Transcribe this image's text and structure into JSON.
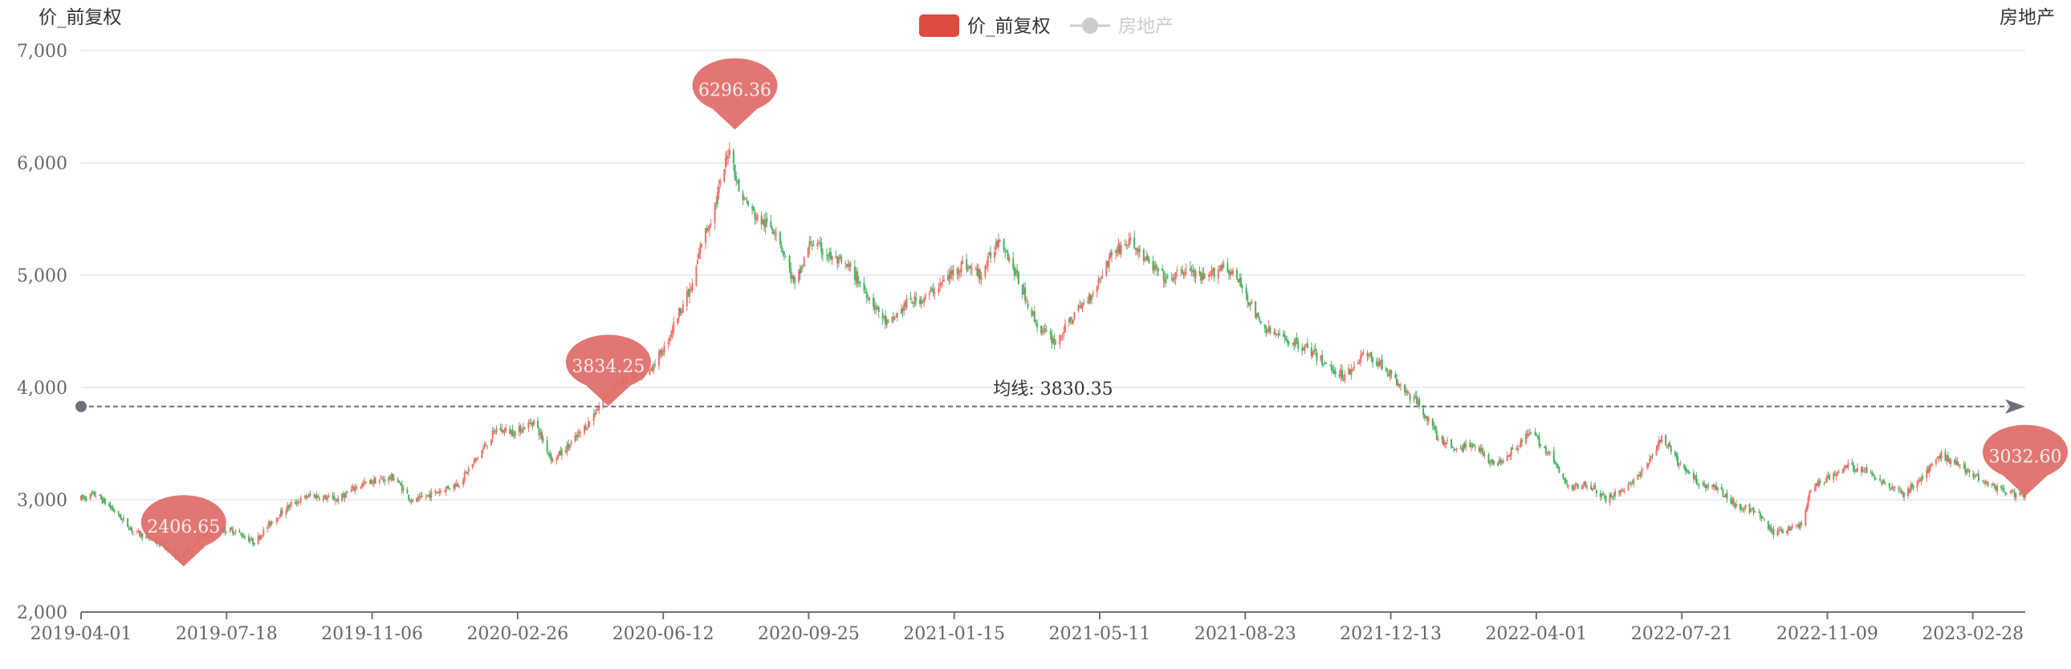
{
  "chart_data": {
    "type": "candlestick",
    "y_axis_name_left": "价_前复权",
    "y_axis_name_right": "房地产",
    "legend": [
      {
        "name": "价_前复权",
        "color": "#dd4b41",
        "active": true
      },
      {
        "name": "房地产",
        "color": "#cccccc",
        "active": false
      }
    ],
    "ylim": [
      2000,
      7000
    ],
    "y_ticks": [
      2000,
      3000,
      4000,
      5000,
      6000,
      7000
    ],
    "y_tick_labels": [
      "2,000",
      "3,000",
      "4,000",
      "5,000",
      "6,000",
      "7,000"
    ],
    "x_start": "2019-04-01",
    "x_end": "2023-03-31",
    "x_tick_labels": [
      "2019-04-01",
      "2019-07-18",
      "2019-11-06",
      "2020-02-26",
      "2020-06-12",
      "2020-09-25",
      "2021-01-15",
      "2021-05-11",
      "2021-08-23",
      "2021-12-13",
      "2022-04-01",
      "2022-07-21",
      "2022-11-09",
      "2023-02-28"
    ],
    "up_color": "#ec7167",
    "down_color": "#47b262",
    "close_series": [
      [
        "2019-04-01",
        3010
      ],
      [
        "2019-04-12",
        3050
      ],
      [
        "2019-04-26",
        2900
      ],
      [
        "2019-05-10",
        2720
      ],
      [
        "2019-05-24",
        2650
      ],
      [
        "2019-06-06",
        2560
      ],
      [
        "2019-06-14",
        2470
      ],
      [
        "2019-06-28",
        2650
      ],
      [
        "2019-07-12",
        2740
      ],
      [
        "2019-07-26",
        2720
      ],
      [
        "2019-08-09",
        2620
      ],
      [
        "2019-08-23",
        2820
      ],
      [
        "2019-09-06",
        2960
      ],
      [
        "2019-09-20",
        3040
      ],
      [
        "2019-10-11",
        3000
      ],
      [
        "2019-10-25",
        3120
      ],
      [
        "2019-11-08",
        3170
      ],
      [
        "2019-11-22",
        3200
      ],
      [
        "2019-12-06",
        2980
      ],
      [
        "2019-12-20",
        3050
      ],
      [
        "2020-01-10",
        3150
      ],
      [
        "2020-01-22",
        3350
      ],
      [
        "2020-02-07",
        3630
      ],
      [
        "2020-02-21",
        3600
      ],
      [
        "2020-03-06",
        3700
      ],
      [
        "2020-03-20",
        3350
      ],
      [
        "2020-04-03",
        3500
      ],
      [
        "2020-04-17",
        3700
      ],
      [
        "2020-04-30",
        3950
      ],
      [
        "2020-05-15",
        4100
      ],
      [
        "2020-05-29",
        4100
      ],
      [
        "2020-06-12",
        4350
      ],
      [
        "2020-06-24",
        4700
      ],
      [
        "2020-07-03",
        4900
      ],
      [
        "2020-07-10",
        5300
      ],
      [
        "2020-07-17",
        5500
      ],
      [
        "2020-07-24",
        5800
      ],
      [
        "2020-07-31",
        6150
      ],
      [
        "2020-08-07",
        5750
      ],
      [
        "2020-08-21",
        5500
      ],
      [
        "2020-09-04",
        5400
      ],
      [
        "2020-09-18",
        4900
      ],
      [
        "2020-09-30",
        5300
      ],
      [
        "2020-10-16",
        5150
      ],
      [
        "2020-10-30",
        5050
      ],
      [
        "2020-11-13",
        4800
      ],
      [
        "2020-11-27",
        4550
      ],
      [
        "2020-12-11",
        4750
      ],
      [
        "2020-12-25",
        4800
      ],
      [
        "2021-01-08",
        4950
      ],
      [
        "2021-01-22",
        5100
      ],
      [
        "2021-02-05",
        5000
      ],
      [
        "2021-02-19",
        5350
      ],
      [
        "2021-03-05",
        4950
      ],
      [
        "2021-03-19",
        4550
      ],
      [
        "2021-04-02",
        4400
      ],
      [
        "2021-04-16",
        4650
      ],
      [
        "2021-04-30",
        4850
      ],
      [
        "2021-05-14",
        5200
      ],
      [
        "2021-05-28",
        5300
      ],
      [
        "2021-06-11",
        5100
      ],
      [
        "2021-06-25",
        4950
      ],
      [
        "2021-07-09",
        5050
      ],
      [
        "2021-07-23",
        4950
      ],
      [
        "2021-08-06",
        5100
      ],
      [
        "2021-08-20",
        4900
      ],
      [
        "2021-09-03",
        4550
      ],
      [
        "2021-09-17",
        4450
      ],
      [
        "2021-10-08",
        4350
      ],
      [
        "2021-10-22",
        4200
      ],
      [
        "2021-11-05",
        4100
      ],
      [
        "2021-11-19",
        4300
      ],
      [
        "2021-12-03",
        4200
      ],
      [
        "2021-12-17",
        4000
      ],
      [
        "2021-12-31",
        3850
      ],
      [
        "2022-01-14",
        3550
      ],
      [
        "2022-01-28",
        3450
      ],
      [
        "2022-02-11",
        3500
      ],
      [
        "2022-02-25",
        3300
      ],
      [
        "2022-03-11",
        3450
      ],
      [
        "2022-03-25",
        3600
      ],
      [
        "2022-04-08",
        3400
      ],
      [
        "2022-04-22",
        3100
      ],
      [
        "2022-05-06",
        3150
      ],
      [
        "2022-05-20",
        3000
      ],
      [
        "2022-06-03",
        3100
      ],
      [
        "2022-06-17",
        3250
      ],
      [
        "2022-07-01",
        3550
      ],
      [
        "2022-07-15",
        3300
      ],
      [
        "2022-07-29",
        3150
      ],
      [
        "2022-08-12",
        3100
      ],
      [
        "2022-08-26",
        2950
      ],
      [
        "2022-09-09",
        2900
      ],
      [
        "2022-09-23",
        2700
      ],
      [
        "2022-10-14",
        2780
      ],
      [
        "2022-10-21",
        3100
      ],
      [
        "2022-11-04",
        3200
      ],
      [
        "2022-11-18",
        3300
      ],
      [
        "2022-12-02",
        3250
      ],
      [
        "2022-12-16",
        3150
      ],
      [
        "2022-12-30",
        3050
      ],
      [
        "2023-01-13",
        3200
      ],
      [
        "2023-01-27",
        3400
      ],
      [
        "2023-02-10",
        3300
      ],
      [
        "2023-02-24",
        3200
      ],
      [
        "2023-03-10",
        3100
      ],
      [
        "2023-03-24",
        3050
      ],
      [
        "2023-03-31",
        3030
      ]
    ],
    "mark_points": [
      {
        "date": "2019-06-17",
        "value": 2406.65,
        "label": "2406.65"
      },
      {
        "date": "2020-05-01",
        "value": 3834.25,
        "label": "3834.25"
      },
      {
        "date": "2020-08-04",
        "value": 6296.36,
        "label": "6296.36"
      },
      {
        "date": "2023-03-31",
        "value": 3032.6,
        "label": "3032.60"
      }
    ],
    "average_line": {
      "value": 3830.35,
      "label": "均线: 3830.35"
    }
  }
}
